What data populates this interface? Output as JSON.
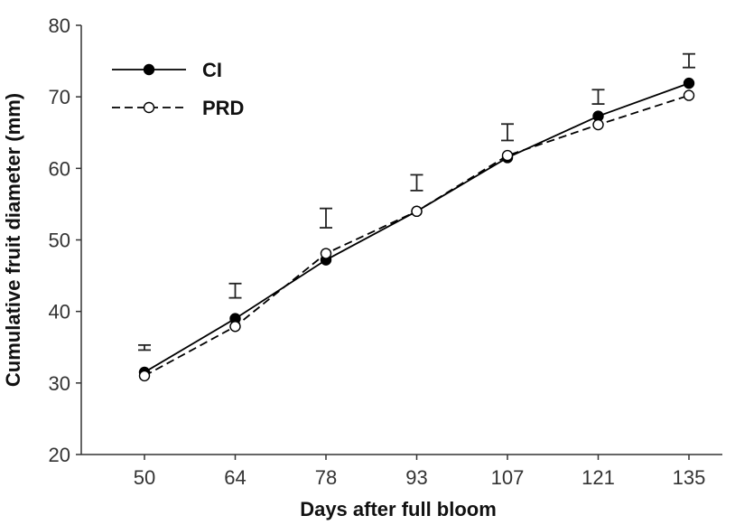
{
  "chart_data": {
    "type": "line",
    "title": "",
    "xlabel": "Days after full bloom",
    "ylabel": "Cumulative fruit diameter (mm)",
    "categories": [
      "50",
      "64",
      "78",
      "93",
      "107",
      "121",
      "135"
    ],
    "ylim": [
      20,
      80
    ],
    "yticks": [
      20,
      30,
      40,
      50,
      60,
      70,
      80
    ],
    "grid": false,
    "legend_position": "top-left",
    "series": [
      {
        "name": "CI",
        "line_style": "solid",
        "marker": "filled-circle",
        "color": "#000000",
        "values": [
          31.5,
          39.0,
          47.2,
          54.0,
          61.5,
          67.3,
          71.9
        ]
      },
      {
        "name": "PRD",
        "line_style": "dashed",
        "marker": "open-circle",
        "color": "#000000",
        "values": [
          31.0,
          37.9,
          48.1,
          54.0,
          61.8,
          66.1,
          70.2
        ]
      }
    ],
    "error_bars": [
      {
        "category": "50",
        "low": 34.6,
        "high": 35.3
      },
      {
        "category": "64",
        "low": 41.9,
        "high": 43.9
      },
      {
        "category": "78",
        "low": 51.7,
        "high": 54.4
      },
      {
        "category": "93",
        "low": 56.9,
        "high": 59.1
      },
      {
        "category": "107",
        "low": 63.9,
        "high": 66.2
      },
      {
        "category": "121",
        "low": 69.0,
        "high": 71.0
      },
      {
        "category": "135",
        "low": 74.1,
        "high": 76.0
      }
    ]
  }
}
